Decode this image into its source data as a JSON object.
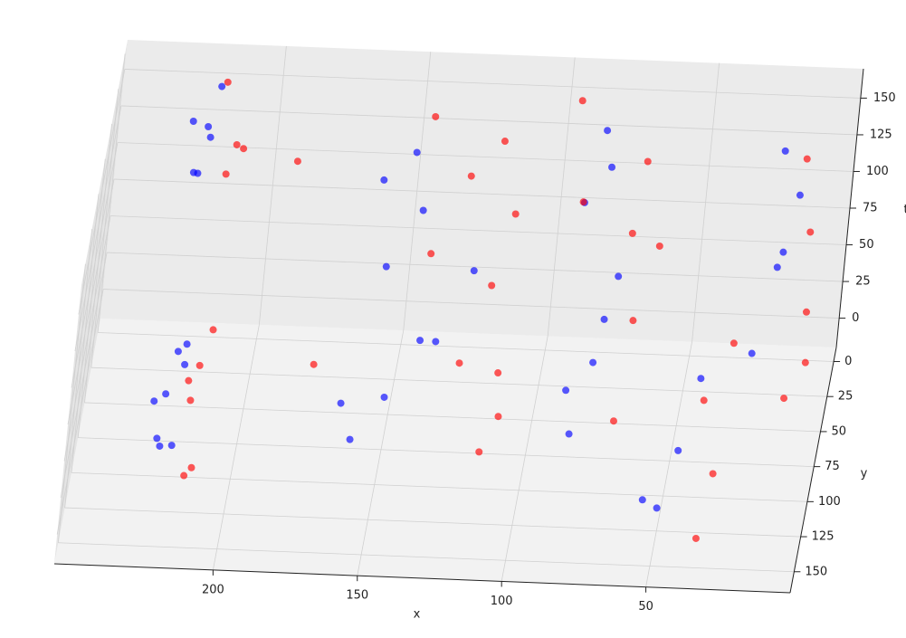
{
  "chart_data": {
    "type": "scatter3d",
    "xlabel": "x",
    "ylabel": "y",
    "tlabel": "t",
    "xlim": [
      0,
      255
    ],
    "ylim": [
      -10,
      165
    ],
    "tlim": [
      -20,
      170
    ],
    "xticks": [
      50,
      100,
      150,
      200
    ],
    "yticks": [
      0,
      25,
      50,
      75,
      100,
      125,
      150
    ],
    "tticks": [
      0,
      25,
      50,
      75,
      100,
      125,
      150
    ],
    "grid": true,
    "series": [
      {
        "color": "#0000ff",
        "x": [
          225,
          220,
          228,
          222,
          218,
          226,
          224,
          219,
          225,
          222,
          228,
          220,
          226,
          223,
          160,
          150,
          140,
          155,
          145,
          160,
          135,
          150,
          125,
          165,
          85,
          80,
          75,
          90,
          85,
          78,
          88,
          82,
          50,
          45,
          40,
          55,
          25,
          20,
          15,
          22,
          18
        ],
        "y": [
          110,
          130,
          120,
          105,
          135,
          115,
          125,
          110,
          20,
          15,
          25,
          10,
          30,
          18,
          100,
          90,
          80,
          60,
          40,
          30,
          70,
          20,
          50,
          85,
          90,
          70,
          50,
          30,
          20,
          60,
          80,
          25,
          140,
          130,
          120,
          145,
          80,
          60,
          50,
          40,
          70
        ],
        "t": [
          10,
          30,
          50,
          70,
          90,
          20,
          60,
          80,
          110,
          130,
          150,
          160,
          120,
          140,
          10,
          30,
          60,
          90,
          110,
          120,
          50,
          130,
          80,
          20,
          10,
          40,
          80,
          110,
          150,
          60,
          30,
          130,
          10,
          40,
          80,
          20,
          60,
          100,
          140,
          160,
          120
        ]
      },
      {
        "color": "#ff0000",
        "x": [
          215,
          212,
          217,
          213,
          210,
          216,
          215,
          212,
          218,
          210,
          115,
          112,
          118,
          113,
          120,
          130,
          140,
          110,
          125,
          145,
          70,
          68,
          72,
          70,
          95,
          90,
          35,
          32,
          38,
          30,
          12,
          8,
          10,
          14,
          6,
          190,
          175,
          60
        ],
        "y": [
          125,
          140,
          115,
          130,
          120,
          108,
          25,
          30,
          12,
          20,
          100,
          80,
          60,
          40,
          20,
          30,
          60,
          90,
          95,
          15,
          90,
          60,
          40,
          20,
          10,
          40,
          150,
          135,
          125,
          115,
          90,
          70,
          55,
          45,
          85,
          40,
          100,
          90
        ],
        "t": [
          5,
          25,
          60,
          85,
          100,
          40,
          115,
          140,
          165,
          128,
          5,
          40,
          80,
          110,
          140,
          125,
          100,
          20,
          60,
          150,
          20,
          60,
          100,
          130,
          160,
          120,
          0,
          30,
          70,
          100,
          40,
          80,
          120,
          160,
          60,
          140,
          60,
          140
        ]
      }
    ]
  }
}
